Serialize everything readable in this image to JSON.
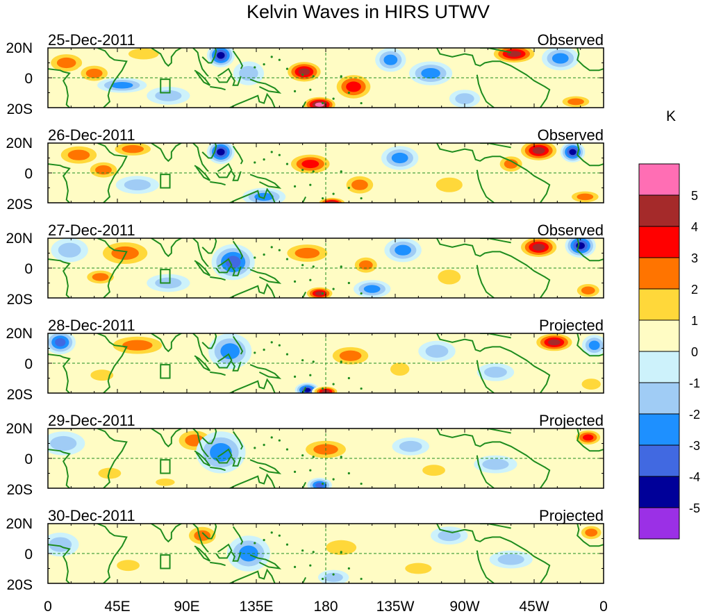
{
  "chart_data": {
    "type": "heatmap",
    "title": "Kelvin Waves in HIRS UTWV",
    "units": "K",
    "x_tick_labels": [
      "0",
      "45E",
      "90E",
      "135E",
      "180",
      "135W",
      "90W",
      "45W",
      "0"
    ],
    "y_tick_labels": [
      "20N",
      "0",
      "20S"
    ],
    "lon_range": [
      0,
      360
    ],
    "lat_range": [
      -20,
      20
    ],
    "panels": [
      {
        "date": "25-Dec-2011",
        "kind": "Observed",
        "anomalies": [
          {
            "lon": 12,
            "lat": 10,
            "value": 2.4,
            "rlon": 14,
            "rlat": 8
          },
          {
            "lon": 30,
            "lat": 3,
            "value": 2.6,
            "rlon": 12,
            "rlat": 7
          },
          {
            "lon": 62,
            "lat": 16,
            "value": 1.4,
            "rlon": 16,
            "rlat": 6
          },
          {
            "lon": 48,
            "lat": -5,
            "value": -2.2,
            "rlon": 16,
            "rlat": 5
          },
          {
            "lon": 78,
            "lat": -12,
            "value": -1.6,
            "rlon": 14,
            "rlat": 6
          },
          {
            "lon": 112,
            "lat": 15,
            "value": -4.8,
            "rlon": 9,
            "rlat": 8
          },
          {
            "lon": 130,
            "lat": 3,
            "value": -2.0,
            "rlon": 10,
            "rlat": 8
          },
          {
            "lon": 166,
            "lat": 4,
            "value": 4.6,
            "rlon": 13,
            "rlat": 8
          },
          {
            "lon": 176,
            "lat": -18,
            "value": 5.2,
            "rlon": 12,
            "rlat": 6
          },
          {
            "lon": 198,
            "lat": -6,
            "value": 3.2,
            "rlon": 14,
            "rlat": 10
          },
          {
            "lon": 222,
            "lat": 12,
            "value": -2.2,
            "rlon": 10,
            "rlat": 8
          },
          {
            "lon": 248,
            "lat": 3,
            "value": -2.6,
            "rlon": 14,
            "rlat": 8
          },
          {
            "lon": 270,
            "lat": -14,
            "value": -1.8,
            "rlon": 10,
            "rlat": 6
          },
          {
            "lon": 302,
            "lat": 16,
            "value": 4.4,
            "rlon": 16,
            "rlat": 7
          },
          {
            "lon": 332,
            "lat": 13,
            "value": -3.0,
            "rlon": 12,
            "rlat": 8
          },
          {
            "lon": 342,
            "lat": -16,
            "value": 2.6,
            "rlon": 12,
            "rlat": 5
          }
        ]
      },
      {
        "date": "26-Dec-2011",
        "kind": "Observed",
        "anomalies": [
          {
            "lon": 20,
            "lat": 12,
            "value": 2.6,
            "rlon": 16,
            "rlat": 8
          },
          {
            "lon": 36,
            "lat": 2,
            "value": 3.0,
            "rlon": 12,
            "rlat": 7
          },
          {
            "lon": 55,
            "lat": 16,
            "value": 2.2,
            "rlon": 16,
            "rlat": 6
          },
          {
            "lon": 58,
            "lat": -8,
            "value": -1.6,
            "rlon": 14,
            "rlat": 6
          },
          {
            "lon": 112,
            "lat": 14,
            "value": -4.6,
            "rlon": 9,
            "rlat": 8
          },
          {
            "lon": 140,
            "lat": -16,
            "value": -3.0,
            "rlon": 14,
            "rlat": 6
          },
          {
            "lon": 170,
            "lat": 6,
            "value": 3.6,
            "rlon": 16,
            "rlat": 8
          },
          {
            "lon": 202,
            "lat": -8,
            "value": 3.0,
            "rlon": 12,
            "rlat": 8
          },
          {
            "lon": 184,
            "lat": -20,
            "value": 4.6,
            "rlon": 10,
            "rlat": 4
          },
          {
            "lon": 228,
            "lat": 10,
            "value": -2.8,
            "rlon": 12,
            "rlat": 8
          },
          {
            "lon": 260,
            "lat": -8,
            "value": 1.8,
            "rlon": 14,
            "rlat": 8
          },
          {
            "lon": 300,
            "lat": 6,
            "value": 2.6,
            "rlon": 10,
            "rlat": 7
          },
          {
            "lon": 318,
            "lat": 15,
            "value": 5.0,
            "rlon": 14,
            "rlat": 8
          },
          {
            "lon": 340,
            "lat": 14,
            "value": -4.8,
            "rlon": 8,
            "rlat": 7
          },
          {
            "lon": 348,
            "lat": -16,
            "value": 2.4,
            "rlon": 12,
            "rlat": 5
          }
        ]
      },
      {
        "date": "27-Dec-2011",
        "kind": "Observed",
        "anomalies": [
          {
            "lon": 50,
            "lat": 10,
            "value": 3.0,
            "rlon": 20,
            "rlat": 10
          },
          {
            "lon": 14,
            "lat": 12,
            "value": -2.0,
            "rlon": 12,
            "rlat": 8
          },
          {
            "lon": 34,
            "lat": -6,
            "value": 2.2,
            "rlon": 12,
            "rlat": 6
          },
          {
            "lon": 78,
            "lat": -10,
            "value": -1.8,
            "rlon": 14,
            "rlat": 6
          },
          {
            "lon": 120,
            "lat": 4,
            "value": -3.2,
            "rlon": 14,
            "rlat": 12
          },
          {
            "lon": 168,
            "lat": 10,
            "value": 3.0,
            "rlon": 18,
            "rlat": 8
          },
          {
            "lon": 176,
            "lat": -17,
            "value": 5.0,
            "rlon": 10,
            "rlat": 5
          },
          {
            "lon": 206,
            "lat": 2,
            "value": 2.4,
            "rlon": 10,
            "rlat": 7
          },
          {
            "lon": 210,
            "lat": -14,
            "value": -3.0,
            "rlon": 12,
            "rlat": 6
          },
          {
            "lon": 230,
            "lat": 12,
            "value": -2.6,
            "rlon": 12,
            "rlat": 8
          },
          {
            "lon": 260,
            "lat": -6,
            "value": 1.6,
            "rlon": 12,
            "rlat": 8
          },
          {
            "lon": 318,
            "lat": 14,
            "value": 4.8,
            "rlon": 14,
            "rlat": 8
          },
          {
            "lon": 345,
            "lat": 15,
            "value": -4.6,
            "rlon": 10,
            "rlat": 8
          },
          {
            "lon": 350,
            "lat": -15,
            "value": 2.4,
            "rlon": 10,
            "rlat": 6
          }
        ]
      },
      {
        "date": "28-Dec-2011",
        "kind": "Projected",
        "anomalies": [
          {
            "lon": 8,
            "lat": 14,
            "value": -3.4,
            "rlon": 10,
            "rlat": 8
          },
          {
            "lon": 58,
            "lat": 12,
            "value": 2.6,
            "rlon": 22,
            "rlat": 8
          },
          {
            "lon": 35,
            "lat": -8,
            "value": 1.6,
            "rlon": 12,
            "rlat": 6
          },
          {
            "lon": 118,
            "lat": 8,
            "value": -3.0,
            "rlon": 14,
            "rlat": 12
          },
          {
            "lon": 168,
            "lat": -18,
            "value": -4.6,
            "rlon": 8,
            "rlat": 5
          },
          {
            "lon": 180,
            "lat": -19,
            "value": 4.4,
            "rlon": 9,
            "rlat": 4
          },
          {
            "lon": 196,
            "lat": 5,
            "value": 3.0,
            "rlon": 16,
            "rlat": 8
          },
          {
            "lon": 228,
            "lat": -4,
            "value": 1.8,
            "rlon": 10,
            "rlat": 7
          },
          {
            "lon": 252,
            "lat": 8,
            "value": -1.8,
            "rlon": 12,
            "rlat": 7
          },
          {
            "lon": 290,
            "lat": -6,
            "value": -1.4,
            "rlon": 12,
            "rlat": 6
          },
          {
            "lon": 328,
            "lat": 14,
            "value": 4.2,
            "rlon": 14,
            "rlat": 7
          },
          {
            "lon": 354,
            "lat": 12,
            "value": -2.2,
            "rlon": 8,
            "rlat": 7
          },
          {
            "lon": 352,
            "lat": -14,
            "value": 1.6,
            "rlon": 10,
            "rlat": 6
          }
        ]
      },
      {
        "date": "29-Dec-2011",
        "kind": "Projected",
        "anomalies": [
          {
            "lon": 10,
            "lat": 10,
            "value": -2.0,
            "rlon": 14,
            "rlat": 8
          },
          {
            "lon": 95,
            "lat": 12,
            "value": 2.6,
            "rlon": 14,
            "rlat": 9
          },
          {
            "lon": 40,
            "lat": -10,
            "value": 1.4,
            "rlon": 12,
            "rlat": 6
          },
          {
            "lon": 112,
            "lat": 4,
            "value": -2.4,
            "rlon": 16,
            "rlat": 14
          },
          {
            "lon": 176,
            "lat": -18,
            "value": -3.6,
            "rlon": 8,
            "rlat": 5
          },
          {
            "lon": 180,
            "lat": 6,
            "value": 2.2,
            "rlon": 18,
            "rlat": 8
          },
          {
            "lon": 235,
            "lat": 8,
            "value": -1.8,
            "rlon": 12,
            "rlat": 6
          },
          {
            "lon": 250,
            "lat": -8,
            "value": 1.4,
            "rlon": 12,
            "rlat": 6
          },
          {
            "lon": 350,
            "lat": 14,
            "value": 3.6,
            "rlon": 10,
            "rlat": 6
          },
          {
            "lon": 76,
            "lat": -16,
            "value": 1.8,
            "rlon": 10,
            "rlat": 4
          },
          {
            "lon": 290,
            "lat": -4,
            "value": -1.4,
            "rlon": 14,
            "rlat": 6
          }
        ]
      },
      {
        "date": "30-Dec-2011",
        "kind": "Projected",
        "anomalies": [
          {
            "lon": 8,
            "lat": 6,
            "value": -1.8,
            "rlon": 12,
            "rlat": 8
          },
          {
            "lon": 100,
            "lat": 12,
            "value": 3.0,
            "rlon": 12,
            "rlat": 8
          },
          {
            "lon": 52,
            "lat": -8,
            "value": 1.4,
            "rlon": 12,
            "rlat": 6
          },
          {
            "lon": 130,
            "lat": 0,
            "value": -2.2,
            "rlon": 14,
            "rlat": 12
          },
          {
            "lon": 185,
            "lat": -16,
            "value": -2.0,
            "rlon": 10,
            "rlat": 5
          },
          {
            "lon": 190,
            "lat": 4,
            "value": 1.8,
            "rlon": 16,
            "rlat": 8
          },
          {
            "lon": 240,
            "lat": -10,
            "value": 1.6,
            "rlon": 14,
            "rlat": 6
          },
          {
            "lon": 260,
            "lat": 12,
            "value": -1.4,
            "rlon": 12,
            "rlat": 6
          },
          {
            "lon": 352,
            "lat": 14,
            "value": 2.4,
            "rlon": 9,
            "rlat": 6
          },
          {
            "lon": 300,
            "lat": -4,
            "value": -1.2,
            "rlon": 14,
            "rlat": 6
          }
        ]
      }
    ],
    "colorbar": {
      "title": "K",
      "tick_labels": [
        "5",
        "4",
        "3",
        "2",
        "1",
        "0",
        "-1",
        "-2",
        "-3",
        "-4",
        "-5"
      ],
      "levels": [
        -5,
        -4,
        -3,
        -2,
        -1,
        0,
        1,
        2,
        3,
        4,
        5
      ],
      "colors": [
        "#9b30e6",
        "#000099",
        "#4169e1",
        "#1e90ff",
        "#a0ccf5",
        "#cdf2fb",
        "#fffcc4",
        "#ffd83a",
        "#ff7400",
        "#ff0000",
        "#a52a2a",
        "#ff6eb4"
      ]
    },
    "line_color": "#1e8c1e",
    "grid": false
  }
}
